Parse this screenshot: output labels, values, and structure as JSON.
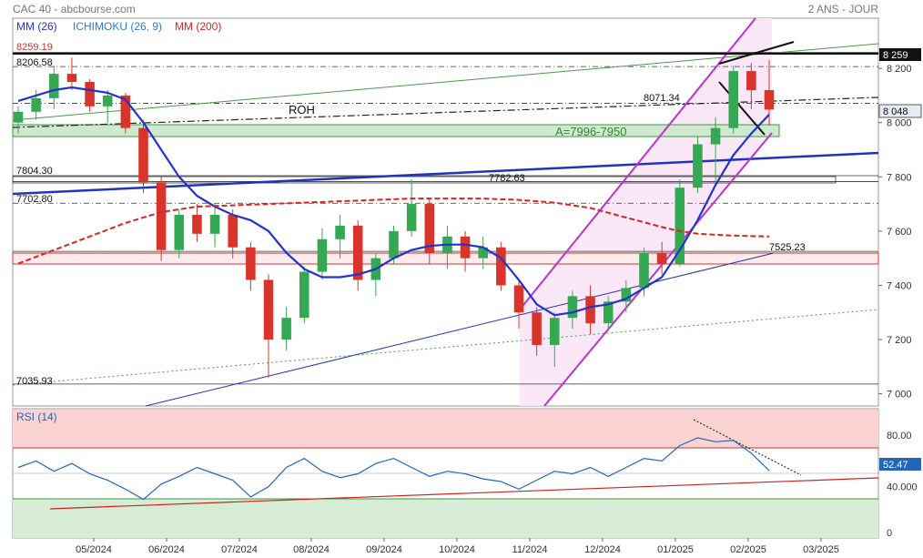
{
  "header": {
    "title": "CAC 40 - abcbourse.com",
    "period": "2 ANS - JOUR"
  },
  "legend": {
    "mm26": "MM (26)",
    "ichimoku": "ICHIMOKU (26, 9)",
    "mm200": "MM (200)"
  },
  "colors": {
    "candle_up": "#34a853",
    "candle_down": "#d9342b",
    "mm26": "#2233cc",
    "ichimoku_tenkan": "#e03030",
    "ichimoku_kijun": "#3399dd",
    "mm200": "#dd2222",
    "channel": "#bb33cc",
    "rsi_line": "#2266bb",
    "rsi_overbought_zone": "#fbd3d3",
    "rsi_oversold_zone": "#d6ecd6",
    "green_zone": "#cfe8cf"
  },
  "chart_data": [
    {
      "type": "candlestick",
      "title": "CAC 40",
      "x_ticks": [
        "05/2024",
        "06/2024",
        "07/2024",
        "08/2024",
        "09/2024",
        "10/2024",
        "11/2024",
        "12/2024",
        "01/2025",
        "02/2025",
        "03/2025"
      ],
      "y_ticks": [
        "7 000",
        "7 200",
        "7 400",
        "7 600",
        "7 800",
        "8 000",
        "8 200"
      ],
      "ylim": [
        6955,
        8385
      ],
      "last_price_label": "8 259",
      "current_price_label": "8 048",
      "levels": [
        {
          "label": "8259.19",
          "value": 8259.19
        },
        {
          "label": "8206.58",
          "value": 8206.58
        },
        {
          "label": "8071.34",
          "value": 8071.34
        },
        {
          "label": "7804.30",
          "value": 7804.3
        },
        {
          "label": "7782.63",
          "value": 7782.63
        },
        {
          "label": "7702.80",
          "value": 7702.8
        },
        {
          "label": "7525.23",
          "value": 7525.23
        },
        {
          "label": "7035.93",
          "value": 7035.93
        }
      ],
      "annotations": {
        "roh": "ROH",
        "zone": "A=7996-7950"
      },
      "series": [
        {
          "name": "MM (26)",
          "points": [
            [
              0,
              8080
            ],
            [
              1,
              8100
            ],
            [
              2,
              8120
            ],
            [
              3,
              8130
            ],
            [
              4,
              8120
            ],
            [
              5,
              8110
            ],
            [
              6,
              8085
            ],
            [
              7,
              8000
            ],
            [
              8,
              7900
            ],
            [
              9,
              7800
            ],
            [
              10,
              7730
            ],
            [
              11,
              7690
            ],
            [
              12,
              7660
            ],
            [
              13,
              7640
            ],
            [
              14,
              7600
            ],
            [
              15,
              7520
            ],
            [
              16,
              7460
            ],
            [
              17,
              7430
            ],
            [
              18,
              7430
            ],
            [
              19,
              7440
            ],
            [
              20,
              7460
            ],
            [
              21,
              7500
            ],
            [
              22,
              7530
            ],
            [
              23,
              7545
            ],
            [
              24,
              7550
            ],
            [
              25,
              7550
            ],
            [
              26,
              7540
            ],
            [
              27,
              7500
            ],
            [
              28,
              7420
            ],
            [
              29,
              7330
            ],
            [
              30,
              7290
            ],
            [
              31,
              7300
            ],
            [
              32,
              7320
            ],
            [
              33,
              7330
            ],
            [
              34,
              7350
            ],
            [
              35,
              7390
            ],
            [
              36,
              7430
            ],
            [
              37,
              7530
            ],
            [
              38,
              7640
            ],
            [
              39,
              7770
            ],
            [
              40,
              7880
            ],
            [
              41,
              7960
            ],
            [
              42,
              8030
            ]
          ]
        },
        {
          "name": "MM (200)",
          "points": [
            [
              0,
              7480
            ],
            [
              2,
              7530
            ],
            [
              4,
              7580
            ],
            [
              6,
              7630
            ],
            [
              8,
              7670
            ],
            [
              10,
              7690
            ],
            [
              12,
              7695
            ],
            [
              14,
              7700
            ],
            [
              16,
              7705
            ],
            [
              18,
              7710
            ],
            [
              20,
              7715
            ],
            [
              22,
              7720
            ],
            [
              24,
              7720
            ],
            [
              26,
              7720
            ],
            [
              28,
              7715
            ],
            [
              30,
              7705
            ],
            [
              32,
              7685
            ],
            [
              34,
              7650
            ],
            [
              36,
              7615
            ],
            [
              37,
              7600
            ],
            [
              38,
              7590
            ],
            [
              40,
              7583
            ],
            [
              42,
              7580
            ]
          ]
        }
      ],
      "candles": [
        {
          "o": 8000,
          "h": 8060,
          "l": 7960,
          "c": 8040
        },
        {
          "o": 8040,
          "h": 8120,
          "l": 8010,
          "c": 8090
        },
        {
          "o": 8090,
          "h": 8210,
          "l": 8050,
          "c": 8180
        },
        {
          "o": 8180,
          "h": 8240,
          "l": 8120,
          "c": 8150
        },
        {
          "o": 8150,
          "h": 8160,
          "l": 8040,
          "c": 8060
        },
        {
          "o": 8060,
          "h": 8120,
          "l": 8000,
          "c": 8100
        },
        {
          "o": 8100,
          "h": 8110,
          "l": 7960,
          "c": 7980
        },
        {
          "o": 7980,
          "h": 8010,
          "l": 7740,
          "c": 7780
        },
        {
          "o": 7780,
          "h": 7800,
          "l": 7490,
          "c": 7530
        },
        {
          "o": 7530,
          "h": 7680,
          "l": 7500,
          "c": 7660
        },
        {
          "o": 7660,
          "h": 7700,
          "l": 7560,
          "c": 7590
        },
        {
          "o": 7590,
          "h": 7700,
          "l": 7540,
          "c": 7660
        },
        {
          "o": 7660,
          "h": 7680,
          "l": 7500,
          "c": 7540
        },
        {
          "o": 7540,
          "h": 7560,
          "l": 7380,
          "c": 7420
        },
        {
          "o": 7420,
          "h": 7440,
          "l": 7060,
          "c": 7200
        },
        {
          "o": 7200,
          "h": 7320,
          "l": 7160,
          "c": 7280
        },
        {
          "o": 7280,
          "h": 7470,
          "l": 7260,
          "c": 7450
        },
        {
          "o": 7450,
          "h": 7610,
          "l": 7420,
          "c": 7570
        },
        {
          "o": 7570,
          "h": 7660,
          "l": 7500,
          "c": 7620
        },
        {
          "o": 7620,
          "h": 7640,
          "l": 7380,
          "c": 7420
        },
        {
          "o": 7420,
          "h": 7520,
          "l": 7360,
          "c": 7500
        },
        {
          "o": 7500,
          "h": 7620,
          "l": 7480,
          "c": 7600
        },
        {
          "o": 7600,
          "h": 7790,
          "l": 7580,
          "c": 7700
        },
        {
          "o": 7700,
          "h": 7720,
          "l": 7480,
          "c": 7520
        },
        {
          "o": 7520,
          "h": 7620,
          "l": 7460,
          "c": 7580
        },
        {
          "o": 7580,
          "h": 7600,
          "l": 7450,
          "c": 7500
        },
        {
          "o": 7500,
          "h": 7580,
          "l": 7460,
          "c": 7540
        },
        {
          "o": 7540,
          "h": 7560,
          "l": 7380,
          "c": 7400
        },
        {
          "o": 7400,
          "h": 7420,
          "l": 7240,
          "c": 7300
        },
        {
          "o": 7300,
          "h": 7320,
          "l": 7140,
          "c": 7180
        },
        {
          "o": 7180,
          "h": 7300,
          "l": 7100,
          "c": 7280
        },
        {
          "o": 7280,
          "h": 7380,
          "l": 7240,
          "c": 7360
        },
        {
          "o": 7360,
          "h": 7400,
          "l": 7220,
          "c": 7260
        },
        {
          "o": 7260,
          "h": 7360,
          "l": 7230,
          "c": 7340
        },
        {
          "o": 7340,
          "h": 7420,
          "l": 7300,
          "c": 7390
        },
        {
          "o": 7390,
          "h": 7540,
          "l": 7360,
          "c": 7520
        },
        {
          "o": 7520,
          "h": 7560,
          "l": 7440,
          "c": 7480
        },
        {
          "o": 7480,
          "h": 7790,
          "l": 7470,
          "c": 7760
        },
        {
          "o": 7760,
          "h": 7950,
          "l": 7740,
          "c": 7920
        },
        {
          "o": 7920,
          "h": 8020,
          "l": 7780,
          "c": 7980
        },
        {
          "o": 7980,
          "h": 8210,
          "l": 7960,
          "c": 8190
        },
        {
          "o": 8190,
          "h": 8220,
          "l": 8050,
          "c": 8120
        },
        {
          "o": 8120,
          "h": 8230,
          "l": 7990,
          "c": 8048
        }
      ]
    },
    {
      "type": "line",
      "title": "RSI (14)",
      "y_ticks": [
        "0",
        "40.000",
        "80.00"
      ],
      "ylim": [
        0,
        100
      ],
      "current_value_label": "52.47",
      "zones": {
        "overbought": 70,
        "oversold": 30
      },
      "series": [
        {
          "name": "RSI (14)",
          "points": [
            [
              0,
              55
            ],
            [
              1,
              60
            ],
            [
              2,
              52
            ],
            [
              3,
              58
            ],
            [
              4,
              50
            ],
            [
              5,
              45
            ],
            [
              6,
              38
            ],
            [
              7,
              30
            ],
            [
              8,
              42
            ],
            [
              9,
              48
            ],
            [
              10,
              55
            ],
            [
              11,
              50
            ],
            [
              12,
              45
            ],
            [
              13,
              32
            ],
            [
              14,
              40
            ],
            [
              15,
              55
            ],
            [
              16,
              62
            ],
            [
              17,
              52
            ],
            [
              18,
              47
            ],
            [
              19,
              50
            ],
            [
              20,
              58
            ],
            [
              21,
              62
            ],
            [
              22,
              55
            ],
            [
              23,
              48
            ],
            [
              24,
              52
            ],
            [
              25,
              50
            ],
            [
              26,
              46
            ],
            [
              27,
              44
            ],
            [
              28,
              38
            ],
            [
              29,
              45
            ],
            [
              30,
              52
            ],
            [
              31,
              50
            ],
            [
              32,
              55
            ],
            [
              33,
              48
            ],
            [
              34,
              55
            ],
            [
              35,
              62
            ],
            [
              36,
              60
            ],
            [
              37,
              72
            ],
            [
              38,
              78
            ],
            [
              39,
              75
            ],
            [
              40,
              76
            ],
            [
              41,
              66
            ],
            [
              42,
              52.47
            ]
          ]
        }
      ]
    }
  ]
}
